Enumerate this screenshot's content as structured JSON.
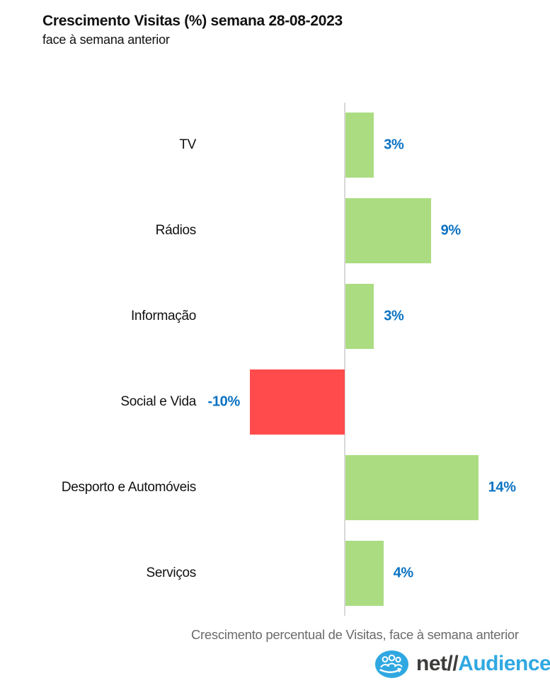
{
  "header": {
    "title": "Crescimento Visitas (%) semana 28-08-2023",
    "subtitle": "face à semana anterior"
  },
  "chart_data": {
    "type": "bar",
    "orientation": "horizontal",
    "title": "Crescimento Visitas (%) semana 28-08-2023",
    "subtitle": "face à semana anterior",
    "categories": [
      "TV",
      "Rádios",
      "Informação",
      "Social e Vida",
      "Desporto e Automóveis",
      "Serviços"
    ],
    "values": [
      3,
      9,
      3,
      -10,
      14,
      4
    ],
    "labels": [
      "3%",
      "9%",
      "3%",
      "-10%",
      "14%",
      "4%"
    ],
    "xlabel": "Crescimento percentual de Visitas, face à semana anterior",
    "ylabel": "",
    "xlim": [
      -14,
      21
    ],
    "grid": false,
    "legend": "none",
    "colors": {
      "positive_bar": "#abdc82",
      "negative_bar": "#ff4b4b",
      "value_label": "#0b72c2",
      "axis_line": "#d9d9d9",
      "category_label": "#111111",
      "caption": "#6b6b6b"
    }
  },
  "caption": "Crescimento percentual de Visitas, face à semana anterior",
  "logo": {
    "net": "net",
    "slashes": "//",
    "audience": "Audience",
    "icon": "people-group-icon",
    "blue": "#2fa8e1",
    "dark": "#3c3c3b"
  }
}
